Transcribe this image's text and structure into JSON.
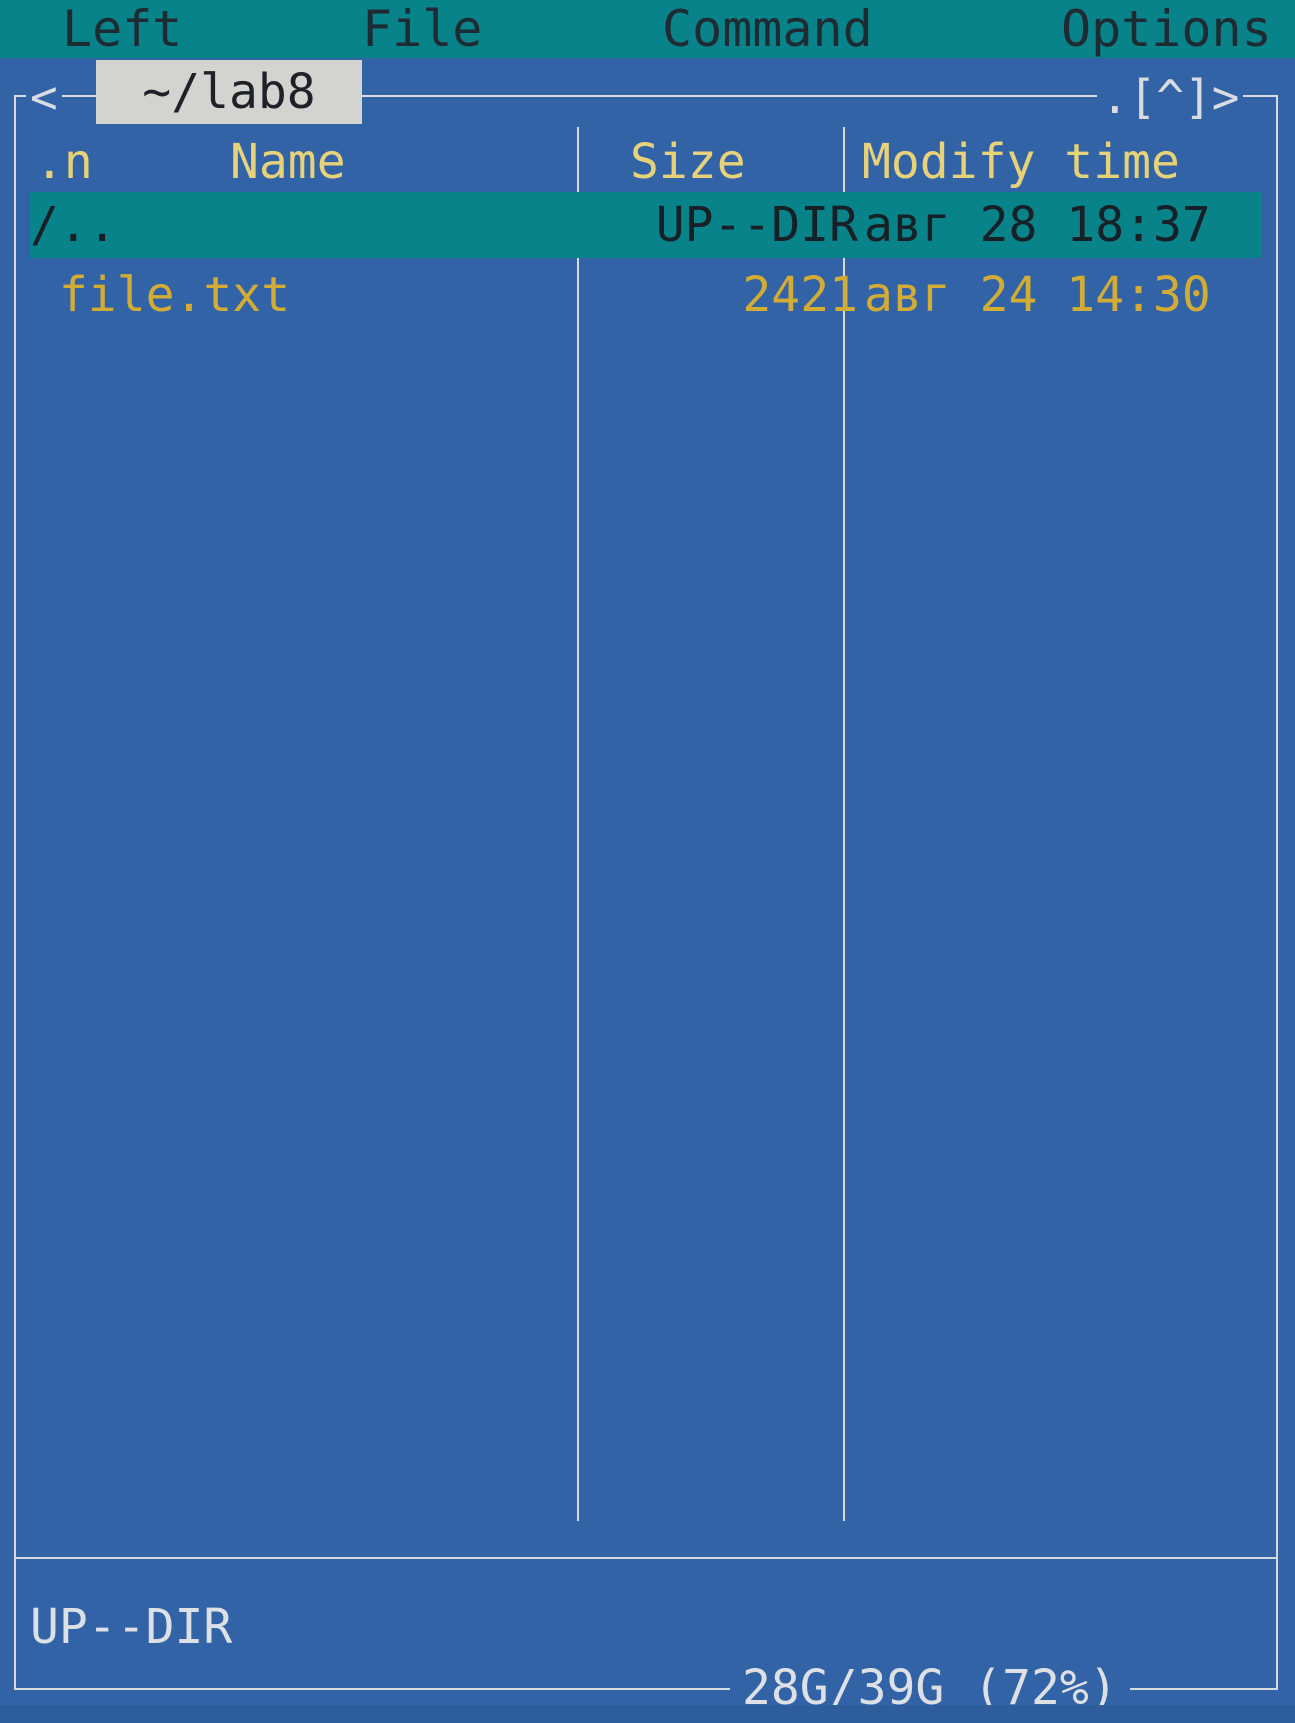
{
  "menu": {
    "items": [
      "Left",
      "File",
      "Command",
      "Options"
    ]
  },
  "panel": {
    "path": "~/lab8",
    "nav_left": "<",
    "nav_right": ".[^]>",
    "columns": {
      "sort": ".n",
      "name": "Name",
      "size": "Size",
      "mtime": "Modify time"
    },
    "rows": [
      {
        "name": "/..",
        "size": "UP--DIR",
        "mtime": "авг 28 18:37",
        "selected": true
      },
      {
        "name": " file.txt",
        "size": "2421",
        "mtime": "авг 24 14:30",
        "selected": false
      }
    ],
    "status": "UP--DIR",
    "disk_info": "28G/39G (72%)"
  },
  "colors": {
    "background": "#3263a6",
    "menubar": "#08838a",
    "selection": "#08838a",
    "header_text": "#e7d27a",
    "file_text": "#d3ac35",
    "path_tab": "#d3d3cf"
  }
}
